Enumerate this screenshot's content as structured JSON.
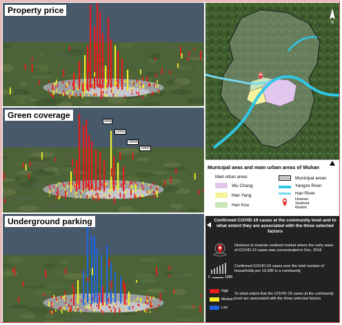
{
  "panels": {
    "property_price": {
      "title": "Property price"
    },
    "green_coverage": {
      "title": "Green coverage",
      "distance_labels": [
        "5KM",
        "10KM",
        "15KM",
        "20KM"
      ]
    },
    "underground_parking": {
      "title": "Underground parking"
    }
  },
  "map_legend": {
    "title": "Municipal aeas and main urban areas of Wuhan",
    "north_label": "N",
    "main_urban_areas_label": "Main urban areas",
    "wu_chang": "Wu Chang",
    "han_yang": "Han Yang",
    "han_kou": "Han Kou",
    "municipal_areas": "Municipal areas",
    "yangze_river": "Yangze River",
    "han_river": "Han River",
    "huanan_market": "Huanan\nSeafood\nMarket",
    "colors": {
      "wu_chang": "#e1c7ee",
      "han_yang": "#f6f29c",
      "han_kou": "#c8e7b9",
      "yangze": "#2ec7e6",
      "han": "#78d7ee"
    }
  },
  "factor_legend": {
    "header": "Confirmed COVID-19 cases at the community level and to what extent they are associated with the three selected factors",
    "distance_text": "Distance to Huanan seafood market where the early wave of COVID-19 cases was concentrated in Dec, 2019",
    "cases_text": "Confirmed COVID-19 cases over the total number of households per 10,000 in a community",
    "scale_min": "0",
    "scale_max": "1988",
    "extent_text": "To what extent that the COVID-19 cases at the community level are associated with the three selected factors",
    "levels": [
      {
        "label": "High",
        "color": "#e81b1b"
      },
      {
        "label": "Medium",
        "color": "#f5f02a"
      },
      {
        "label": "Low",
        "color": "#1e63e0"
      }
    ]
  }
}
